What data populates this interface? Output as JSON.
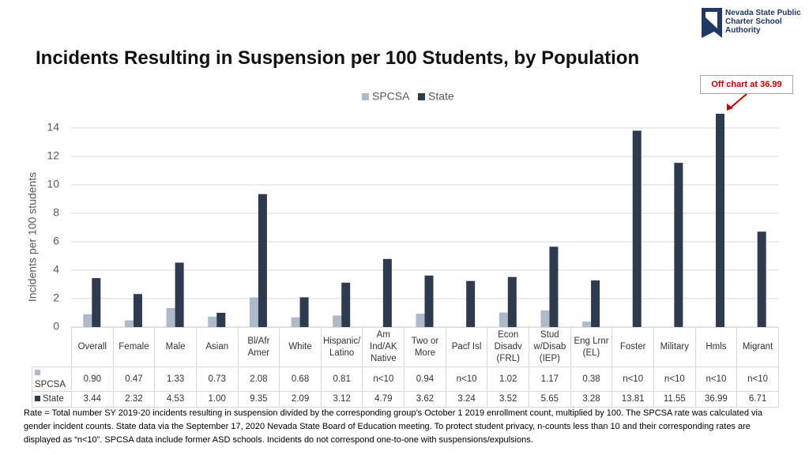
{
  "logo": "Nevada State Public Charter School Authority",
  "chart_data": {
    "type": "bar",
    "title": "Incidents Resulting in Suspension per 100 Students, by Population",
    "y_label": "Incidents per 100 students",
    "annotation": "Off chart at 36.99",
    "categories": [
      "Overall",
      "Female",
      "Male",
      "Asian",
      "Bl/Afr\nAmer",
      "White",
      "Hispanic/\nLatino",
      "Am\nInd/AK\nNative",
      "Two or\nMore",
      "Pacf Isl",
      "Econ\nDisadv\n(FRL)",
      "Stud\nw/Disab\n(IEP)",
      "Eng Lrnr\n(EL)",
      "Foster",
      "Military",
      "Hmls",
      "Migrant"
    ],
    "series": [
      {
        "name": "SPCSA",
        "color": "#aeb9c9",
        "values": [
          0.9,
          0.47,
          1.33,
          0.73,
          2.08,
          0.68,
          0.81,
          null,
          0.94,
          null,
          1.02,
          1.17,
          0.38,
          null,
          null,
          null,
          null
        ],
        "value_labels": [
          "0.90",
          "0.47",
          "1.33",
          "0.73",
          "2.08",
          "0.68",
          "0.81",
          "n<10",
          "0.94",
          "n<10",
          "1.02",
          "1.17",
          "0.38",
          "n<10",
          "n<10",
          "n<10",
          "n<10"
        ]
      },
      {
        "name": "State",
        "color": "#2e3a4e",
        "values": [
          3.44,
          2.32,
          4.53,
          1.0,
          9.35,
          2.09,
          3.12,
          4.79,
          3.62,
          3.24,
          3.52,
          5.65,
          3.28,
          13.81,
          11.55,
          36.99,
          6.71
        ],
        "value_labels": [
          "3.44",
          "2.32",
          "4.53",
          "1.00",
          "9.35",
          "2.09",
          "3.12",
          "4.79",
          "3.62",
          "3.24",
          "3.52",
          "5.65",
          "3.28",
          "13.81",
          "11.55",
          "36.99",
          "6.71"
        ]
      }
    ],
    "ylim": [
      0,
      15
    ],
    "yticks": [
      0,
      2,
      4,
      6,
      8,
      10,
      12,
      14
    ],
    "grid": true,
    "legend": "top"
  },
  "footnote": "Rate = Total number SY 2019-20 incidents resulting in suspension divided by the corresponding group’s October 1 2019 enrollment count, multiplied by 100. The SPCSA rate was calculated via gender incident counts. State data via the September 17, 2020 Nevada State Board of Education meeting. To protect student privacy, n-counts less than 10 and their corresponding rates are displayed as “n<10”. SPCSA data include former ASD schools. Incidents do not correspond one-to-one with suspensions/expulsions."
}
